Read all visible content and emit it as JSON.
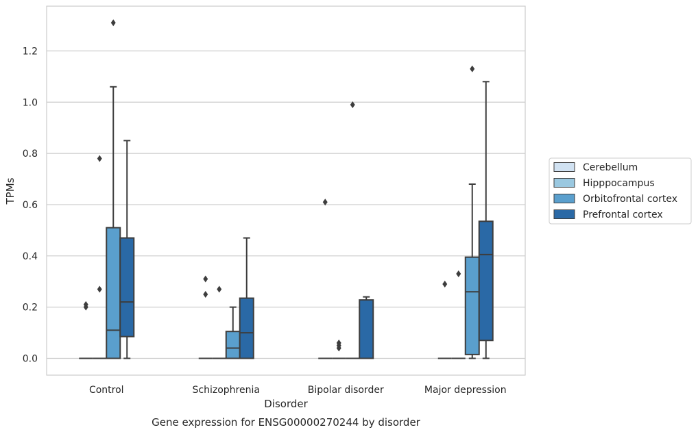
{
  "chart_data": {
    "type": "box",
    "caption": "Gene expression for ENSG00000270244 by disorder",
    "xlabel": "Disorder",
    "ylabel": "TPMs",
    "ylim": [
      -0.065,
      1.38
    ],
    "yticks": [
      0.0,
      0.2,
      0.4,
      0.6,
      0.8,
      1.0,
      1.2
    ],
    "ytick_labels": [
      "0.0",
      "0.2",
      "0.4",
      "0.6",
      "0.8",
      "1.0",
      "1.2"
    ],
    "grid": "horizontal",
    "legend_position": "right",
    "categories": [
      "Control",
      "Schizophrenia",
      "Bipolar disorder",
      "Major depression"
    ],
    "series": [
      {
        "name": "Cerebellum",
        "color": "#d1e2f2",
        "boxes": [
          {
            "whislo": 0,
            "q1": 0,
            "med": 0,
            "q3": 0,
            "whishi": 0,
            "fliers": [
              0.2,
              0.21
            ]
          },
          {
            "whislo": 0,
            "q1": 0,
            "med": 0,
            "q3": 0,
            "whishi": 0,
            "fliers": [
              0.25,
              0.31
            ]
          },
          {
            "whislo": 0,
            "q1": 0,
            "med": 0,
            "q3": 0,
            "whishi": 0,
            "fliers": [
              0.61
            ]
          },
          {
            "whislo": 0,
            "q1": 0,
            "med": 0,
            "q3": 0,
            "whishi": 0,
            "fliers": [
              0.29
            ]
          }
        ]
      },
      {
        "name": "Hipppocampus",
        "color": "#9ac8e0",
        "boxes": [
          {
            "whislo": 0,
            "q1": 0,
            "med": 0,
            "q3": 0,
            "whishi": 0,
            "fliers": [
              0.27,
              0.78
            ]
          },
          {
            "whislo": 0,
            "q1": 0,
            "med": 0,
            "q3": 0,
            "whishi": 0,
            "fliers": [
              0.27
            ]
          },
          {
            "whislo": 0,
            "q1": 0,
            "med": 0,
            "q3": 0,
            "whishi": 0,
            "fliers": [
              0.04,
              0.05,
              0.06
            ]
          },
          {
            "whislo": 0,
            "q1": 0,
            "med": 0,
            "q3": 0,
            "whishi": 0,
            "fliers": [
              0.33
            ]
          }
        ]
      },
      {
        "name": "Orbitofrontal cortex",
        "color": "#5a9fcd",
        "boxes": [
          {
            "whislo": 0,
            "q1": 0,
            "med": 0.11,
            "q3": 0.51,
            "whishi": 1.06,
            "fliers": [
              1.31
            ]
          },
          {
            "whislo": 0,
            "q1": 0,
            "med": 0.04,
            "q3": 0.105,
            "whishi": 0.2,
            "fliers": []
          },
          {
            "whislo": 0,
            "q1": 0,
            "med": 0,
            "q3": 0,
            "whishi": 0,
            "fliers": [
              0.99
            ]
          },
          {
            "whislo": 0,
            "q1": 0.015,
            "med": 0.26,
            "q3": 0.395,
            "whishi": 0.68,
            "fliers": [
              1.13
            ]
          }
        ]
      },
      {
        "name": "Prefrontal cortex",
        "color": "#2a69a6",
        "boxes": [
          {
            "whislo": 0,
            "q1": 0.085,
            "med": 0.22,
            "q3": 0.47,
            "whishi": 0.85,
            "fliers": []
          },
          {
            "whislo": 0,
            "q1": 0,
            "med": 0.1,
            "q3": 0.235,
            "whishi": 0.47,
            "fliers": []
          },
          {
            "whislo": 0,
            "q1": 0,
            "med": 0,
            "q3": 0.228,
            "whishi": 0.24,
            "fliers": []
          },
          {
            "whislo": 0,
            "q1": 0.07,
            "med": 0.405,
            "q3": 0.535,
            "whishi": 1.08,
            "fliers": []
          }
        ]
      }
    ]
  }
}
